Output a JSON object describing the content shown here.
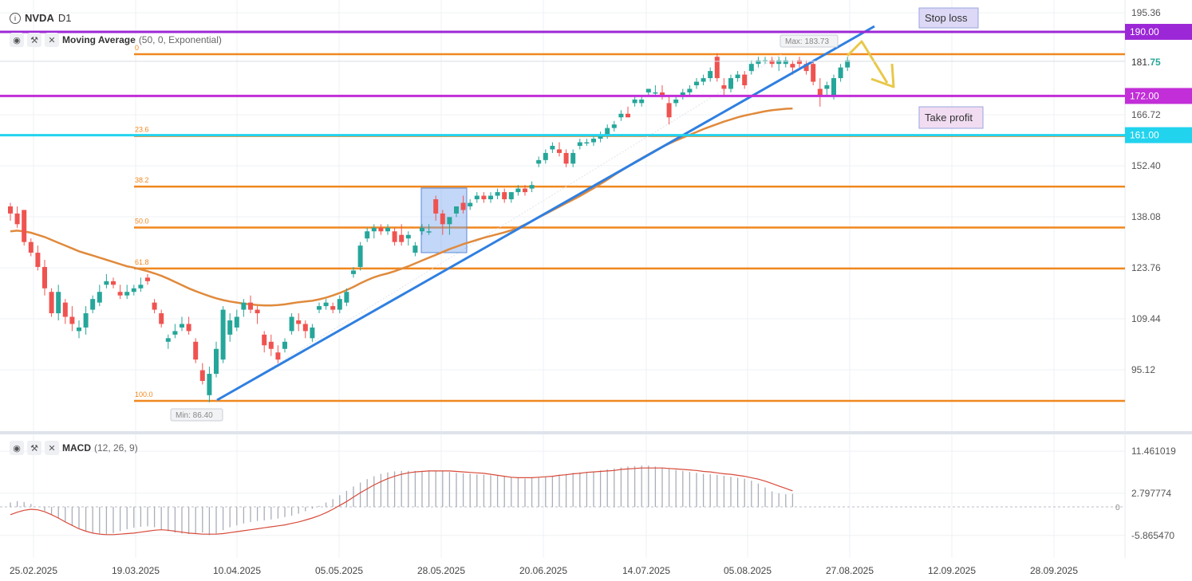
{
  "header": {
    "symbol": "NVDA",
    "timeframe": "D1"
  },
  "indicator_main": {
    "name": "Moving Average",
    "params": "(50, 0, Exponential)"
  },
  "indicator_sub": {
    "name": "MACD",
    "params": "(12, 26, 9)"
  },
  "icons": [
    "info-icon",
    "eye-icon",
    "wrench-icon",
    "close-icon"
  ],
  "annotations": {
    "stop_loss_label": "Stop loss",
    "take_profit_label": "Take profit",
    "max_label": "Max: 183.73",
    "min_label": "Min: 86.40"
  },
  "colors": {
    "up": "#26a69a",
    "down": "#ef5350",
    "fib": "#f0871e",
    "ema": "#e08a3c",
    "trend": "#2f7fe0",
    "level_stop": "#9c27d6",
    "level_take": "#c22ed8",
    "level_cyan": "#22d3ee",
    "arrow": "#e8c84a",
    "box": "#7aa7f0"
  },
  "chart_data": {
    "type": "candlestick",
    "price_axis_labels": [
      "195.36",
      "181.75",
      "166.72",
      "152.40",
      "138.08",
      "123.76",
      "109.44",
      "95.12"
    ],
    "date_labels": [
      "25.02.2025",
      "19.03.2025",
      "10.04.2025",
      "05.05.2025",
      "28.05.2025",
      "20.06.2025",
      "14.07.2025",
      "05.08.2025",
      "27.08.2025",
      "12.09.2025",
      "28.09.2025"
    ],
    "current_price": {
      "whole": "181.",
      "decimals": "75"
    },
    "horizontal_levels": [
      {
        "price": 190.0,
        "label": "190.00",
        "color": "#9c27d6"
      },
      {
        "price": 172.0,
        "label": "172.00",
        "color": "#c22ed8"
      },
      {
        "price": 161.0,
        "label": "161.00",
        "color": "#22d3ee"
      }
    ],
    "fibonacci": {
      "levels": [
        {
          "ratio": "0",
          "price": 183.73
        },
        {
          "ratio": "23.6",
          "price": 160.76
        },
        {
          "ratio": "38.2",
          "price": 146.55
        },
        {
          "ratio": "50.0",
          "price": 135.07
        },
        {
          "ratio": "61.8",
          "price": 123.58
        },
        {
          "ratio": "100.0",
          "price": 86.4
        }
      ]
    },
    "candles": [
      {
        "o": 141,
        "h": 142,
        "l": 137,
        "c": 139
      },
      {
        "o": 139,
        "h": 141,
        "l": 135,
        "c": 136
      },
      {
        "o": 140,
        "h": 140,
        "l": 130,
        "c": 131
      },
      {
        "o": 131,
        "h": 132,
        "l": 127,
        "c": 128
      },
      {
        "o": 128,
        "h": 130,
        "l": 123,
        "c": 124
      },
      {
        "o": 124,
        "h": 126,
        "l": 116,
        "c": 118
      },
      {
        "o": 117,
        "h": 118,
        "l": 110,
        "c": 111
      },
      {
        "o": 111,
        "h": 119,
        "l": 109,
        "c": 117
      },
      {
        "o": 114,
        "h": 115,
        "l": 108,
        "c": 110
      },
      {
        "o": 110,
        "h": 113,
        "l": 106,
        "c": 108
      },
      {
        "o": 106,
        "h": 109,
        "l": 104,
        "c": 107
      },
      {
        "o": 107,
        "h": 113,
        "l": 105,
        "c": 111
      },
      {
        "o": 112,
        "h": 116,
        "l": 111,
        "c": 115
      },
      {
        "o": 114,
        "h": 119,
        "l": 113,
        "c": 117
      },
      {
        "o": 119,
        "h": 122,
        "l": 118,
        "c": 120
      },
      {
        "o": 120,
        "h": 121,
        "l": 118,
        "c": 119
      },
      {
        "o": 117,
        "h": 119,
        "l": 115,
        "c": 116
      },
      {
        "o": 116,
        "h": 119,
        "l": 115,
        "c": 117
      },
      {
        "o": 117,
        "h": 119,
        "l": 116,
        "c": 118
      },
      {
        "o": 118,
        "h": 121,
        "l": 117,
        "c": 119
      },
      {
        "o": 121,
        "h": 122,
        "l": 119,
        "c": 120
      },
      {
        "o": 114,
        "h": 115,
        "l": 111,
        "c": 112
      },
      {
        "o": 111,
        "h": 112,
        "l": 107,
        "c": 108
      },
      {
        "o": 103,
        "h": 105,
        "l": 101,
        "c": 104
      },
      {
        "o": 105,
        "h": 108,
        "l": 104,
        "c": 106
      },
      {
        "o": 107,
        "h": 110,
        "l": 106,
        "c": 108
      },
      {
        "o": 108,
        "h": 110,
        "l": 105,
        "c": 106
      },
      {
        "o": 103,
        "h": 104,
        "l": 97,
        "c": 98
      },
      {
        "o": 95,
        "h": 97,
        "l": 91,
        "c": 92
      },
      {
        "o": 88,
        "h": 96,
        "l": 86,
        "c": 94
      },
      {
        "o": 94,
        "h": 103,
        "l": 93,
        "c": 101
      },
      {
        "o": 98,
        "h": 113,
        "l": 97,
        "c": 112
      },
      {
        "o": 105,
        "h": 111,
        "l": 103,
        "c": 109
      },
      {
        "o": 107,
        "h": 112,
        "l": 106,
        "c": 110
      },
      {
        "o": 112,
        "h": 115,
        "l": 110,
        "c": 114
      },
      {
        "o": 114,
        "h": 116,
        "l": 111,
        "c": 112
      },
      {
        "o": 112,
        "h": 113,
        "l": 108,
        "c": 111
      },
      {
        "o": 105,
        "h": 106,
        "l": 100,
        "c": 102
      },
      {
        "o": 103,
        "h": 105,
        "l": 99,
        "c": 101
      },
      {
        "o": 100,
        "h": 102,
        "l": 97,
        "c": 98
      },
      {
        "o": 101,
        "h": 104,
        "l": 100,
        "c": 103
      },
      {
        "o": 106,
        "h": 111,
        "l": 105,
        "c": 110
      },
      {
        "o": 109,
        "h": 111,
        "l": 106,
        "c": 108
      },
      {
        "o": 108,
        "h": 109,
        "l": 104,
        "c": 106
      },
      {
        "o": 104,
        "h": 108,
        "l": 103,
        "c": 107
      },
      {
        "o": 112,
        "h": 114,
        "l": 111,
        "c": 113
      },
      {
        "o": 113,
        "h": 115,
        "l": 112,
        "c": 114
      },
      {
        "o": 113,
        "h": 114,
        "l": 111,
        "c": 112
      },
      {
        "o": 112,
        "h": 116,
        "l": 111,
        "c": 115
      },
      {
        "o": 114,
        "h": 118,
        "l": 113,
        "c": 117
      },
      {
        "o": 122,
        "h": 124,
        "l": 121,
        "c": 123
      },
      {
        "o": 124,
        "h": 131,
        "l": 123,
        "c": 130
      },
      {
        "o": 132,
        "h": 135,
        "l": 131,
        "c": 134
      },
      {
        "o": 134,
        "h": 136,
        "l": 132,
        "c": 135
      },
      {
        "o": 135,
        "h": 136,
        "l": 133,
        "c": 134
      },
      {
        "o": 134,
        "h": 136,
        "l": 133,
        "c": 135
      },
      {
        "o": 134,
        "h": 135,
        "l": 130,
        "c": 131
      },
      {
        "o": 133,
        "h": 136,
        "l": 130,
        "c": 131
      },
      {
        "o": 132,
        "h": 134,
        "l": 130,
        "c": 133
      },
      {
        "o": 128,
        "h": 131,
        "l": 127,
        "c": 130
      },
      {
        "o": 134,
        "h": 136,
        "l": 133,
        "c": 135
      },
      {
        "o": 134,
        "h": 136,
        "l": 133,
        "c": 134
      },
      {
        "o": 143,
        "h": 144,
        "l": 137,
        "c": 139
      },
      {
        "o": 139,
        "h": 140,
        "l": 133,
        "c": 136
      },
      {
        "o": 136,
        "h": 138,
        "l": 133,
        "c": 138
      },
      {
        "o": 139,
        "h": 141,
        "l": 138,
        "c": 141
      },
      {
        "o": 142,
        "h": 144,
        "l": 139,
        "c": 140
      },
      {
        "o": 141,
        "h": 143,
        "l": 140,
        "c": 142
      },
      {
        "o": 143,
        "h": 145,
        "l": 142,
        "c": 144
      },
      {
        "o": 144,
        "h": 145,
        "l": 142,
        "c": 143
      },
      {
        "o": 143,
        "h": 145,
        "l": 142,
        "c": 144
      },
      {
        "o": 144,
        "h": 146,
        "l": 143,
        "c": 145
      },
      {
        "o": 145,
        "h": 146,
        "l": 142,
        "c": 143
      },
      {
        "o": 143,
        "h": 145,
        "l": 142,
        "c": 145
      },
      {
        "o": 145,
        "h": 147,
        "l": 144,
        "c": 146
      },
      {
        "o": 146,
        "h": 147,
        "l": 144,
        "c": 145
      },
      {
        "o": 146,
        "h": 148,
        "l": 145,
        "c": 147
      },
      {
        "o": 153,
        "h": 155,
        "l": 152,
        "c": 154
      },
      {
        "o": 154,
        "h": 157,
        "l": 153,
        "c": 156
      },
      {
        "o": 157,
        "h": 159,
        "l": 156,
        "c": 158
      },
      {
        "o": 157,
        "h": 159,
        "l": 155,
        "c": 156
      },
      {
        "o": 156,
        "h": 157,
        "l": 152,
        "c": 153
      },
      {
        "o": 153,
        "h": 157,
        "l": 152,
        "c": 156
      },
      {
        "o": 158,
        "h": 160,
        "l": 157,
        "c": 159
      },
      {
        "o": 159,
        "h": 160,
        "l": 158,
        "c": 159
      },
      {
        "o": 159,
        "h": 161,
        "l": 158,
        "c": 160
      },
      {
        "o": 160,
        "h": 162,
        "l": 159,
        "c": 161
      },
      {
        "o": 161,
        "h": 164,
        "l": 160,
        "c": 163
      },
      {
        "o": 163,
        "h": 165,
        "l": 162,
        "c": 164
      },
      {
        "o": 166,
        "h": 168,
        "l": 165,
        "c": 167
      },
      {
        "o": 167,
        "h": 169,
        "l": 166,
        "c": 166
      },
      {
        "o": 170,
        "h": 172,
        "l": 169,
        "c": 171
      },
      {
        "o": 170,
        "h": 172,
        "l": 169,
        "c": 171
      },
      {
        "o": 173,
        "h": 174,
        "l": 172,
        "c": 174
      },
      {
        "o": 173,
        "h": 175,
        "l": 172,
        "c": 173
      },
      {
        "o": 173,
        "h": 175,
        "l": 171,
        "c": 172
      },
      {
        "o": 170,
        "h": 172,
        "l": 164,
        "c": 166
      },
      {
        "o": 170,
        "h": 172,
        "l": 169,
        "c": 171
      },
      {
        "o": 172,
        "h": 174,
        "l": 171,
        "c": 173
      },
      {
        "o": 173,
        "h": 175,
        "l": 172,
        "c": 174
      },
      {
        "o": 175,
        "h": 177,
        "l": 174,
        "c": 176
      },
      {
        "o": 176,
        "h": 178,
        "l": 175,
        "c": 177
      },
      {
        "o": 177,
        "h": 180,
        "l": 176,
        "c": 179
      },
      {
        "o": 183,
        "h": 184,
        "l": 176,
        "c": 177
      },
      {
        "o": 175,
        "h": 177,
        "l": 172,
        "c": 174
      },
      {
        "o": 174,
        "h": 178,
        "l": 173,
        "c": 177
      },
      {
        "o": 177,
        "h": 179,
        "l": 176,
        "c": 178
      },
      {
        "o": 178,
        "h": 179,
        "l": 174,
        "c": 175
      },
      {
        "o": 179,
        "h": 182,
        "l": 178,
        "c": 181
      },
      {
        "o": 181,
        "h": 183,
        "l": 180,
        "c": 182
      },
      {
        "o": 182,
        "h": 183,
        "l": 181,
        "c": 182
      },
      {
        "o": 182,
        "h": 183,
        "l": 180,
        "c": 181
      },
      {
        "o": 181,
        "h": 183,
        "l": 179,
        "c": 182
      },
      {
        "o": 181,
        "h": 183,
        "l": 180,
        "c": 182
      },
      {
        "o": 181,
        "h": 182,
        "l": 178,
        "c": 180
      },
      {
        "o": 182,
        "h": 183,
        "l": 180,
        "c": 181
      },
      {
        "o": 181,
        "h": 182,
        "l": 178,
        "c": 179
      },
      {
        "o": 181,
        "h": 182,
        "l": 175,
        "c": 176
      },
      {
        "o": 174,
        "h": 177,
        "l": 169,
        "c": 172
      },
      {
        "o": 174,
        "h": 176,
        "l": 172,
        "c": 175
      },
      {
        "o": 172,
        "h": 178,
        "l": 171,
        "c": 177
      },
      {
        "o": 177,
        "h": 181,
        "l": 176,
        "c": 180
      },
      {
        "o": 180,
        "h": 183,
        "l": 179,
        "c": 182
      }
    ],
    "ema50": [
      134,
      134.2,
      134,
      133.6,
      133,
      132.4,
      131.6,
      130.8,
      130,
      129.2,
      128.4,
      127.8,
      127.2,
      126.6,
      126,
      125.4,
      124.8,
      124.2,
      123.8,
      123.3,
      122.8,
      122.2,
      121.5,
      120.7,
      119.8,
      118.9,
      118,
      117.2,
      116.5,
      115.8,
      115.2,
      114.7,
      114.3,
      114,
      113.7,
      113.5,
      113.3,
      113.2,
      113.2,
      113.3,
      113.5,
      113.8,
      114.1,
      114.3,
      114.5,
      114.9,
      115.4,
      116,
      116.7,
      117.5,
      118.4,
      119.4,
      120.3,
      121.1,
      121.7,
      122.2,
      122.8,
      123.5,
      124.2,
      125,
      125.8,
      126.6,
      127.4,
      128.2,
      129,
      129.7,
      130.4,
      131,
      131.6,
      132.2,
      132.7,
      133.2,
      133.7,
      134.3,
      135,
      135.9,
      136.9,
      137.9,
      138.9,
      139.9,
      140.9,
      141.9,
      142.9,
      143.9,
      145,
      146.1,
      147.3,
      148.5,
      149.8,
      151,
      152.2,
      153.4,
      154.5,
      155.6,
      156.7,
      157.7,
      158.6,
      159.5,
      160.3,
      161.1,
      161.9,
      162.7,
      163.4,
      164.1,
      164.8,
      165.4,
      166,
      166.5,
      166.9,
      167.3,
      167.7,
      168,
      168.2,
      168.4,
      168.5
    ],
    "macd_histogram": [
      0.9,
      1.2,
      1.0,
      0.6,
      0.0,
      -0.8,
      -1.6,
      -2.4,
      -3.2,
      -3.8,
      -4.4,
      -4.9,
      -5.3,
      -5.6,
      -5.6,
      -5.4,
      -5.0,
      -4.6,
      -4.3,
      -4.1,
      -4.0,
      -4.2,
      -4.6,
      -5.0,
      -5.3,
      -5.5,
      -5.6,
      -5.5,
      -5.3,
      -5.8,
      -5.5,
      -4.8,
      -4.2,
      -3.8,
      -3.4,
      -3.1,
      -2.9,
      -2.8,
      -2.6,
      -2.4,
      -2.1,
      -1.8,
      -1.4,
      -0.9,
      -0.4,
      0.2,
      0.9,
      1.6,
      2.4,
      3.3,
      4.2,
      5.0,
      5.7,
      6.3,
      6.8,
      7.1,
      7.3,
      7.4,
      7.4,
      7.4,
      7.4,
      7.5,
      7.4,
      7.3,
      7.2,
      7.0,
      6.9,
      6.8,
      6.7,
      6.6,
      6.5,
      6.4,
      6.3,
      6.1,
      5.9,
      5.8,
      5.9,
      6.0,
      6.2,
      6.4,
      6.6,
      6.8,
      7.0,
      7.1,
      7.2,
      7.3,
      7.5,
      7.7,
      7.9,
      8.1,
      8.3,
      8.4,
      8.5,
      8.5,
      8.3,
      8.1,
      7.8,
      7.6,
      7.4,
      7.2,
      7.0,
      6.8,
      6.7,
      6.6,
      6.4,
      6.2,
      6.0,
      5.8,
      5.4,
      4.8,
      4.0,
      3.2,
      2.8,
      2.6,
      2.7
    ],
    "macd_signal": [
      -1.6,
      -1.1,
      -0.7,
      -0.5,
      -0.6,
      -1.0,
      -1.6,
      -2.3,
      -3.1,
      -3.8,
      -4.5,
      -5.0,
      -5.4,
      -5.6,
      -5.7,
      -5.7,
      -5.6,
      -5.5,
      -5.4,
      -5.2,
      -5.0,
      -4.8,
      -4.7,
      -4.8,
      -5.0,
      -5.2,
      -5.4,
      -5.5,
      -5.6,
      -5.6,
      -5.6,
      -5.5,
      -5.3,
      -5.1,
      -4.9,
      -4.7,
      -4.5,
      -4.3,
      -4.1,
      -3.9,
      -3.7,
      -3.4,
      -3.1,
      -2.7,
      -2.3,
      -1.8,
      -1.2,
      -0.5,
      0.3,
      1.1,
      2.0,
      2.9,
      3.7,
      4.5,
      5.2,
      5.8,
      6.3,
      6.7,
      7.0,
      7.2,
      7.3,
      7.4,
      7.4,
      7.4,
      7.4,
      7.3,
      7.2,
      7.1,
      7.0,
      6.9,
      6.7,
      6.5,
      6.3,
      6.1,
      6.0,
      6.0,
      6.0,
      6.1,
      6.2,
      6.3,
      6.5,
      6.6,
      6.8,
      6.9,
      7.1,
      7.2,
      7.3,
      7.4,
      7.5,
      7.7,
      7.8,
      7.9,
      8.0,
      8.0,
      8.0,
      8.0,
      7.9,
      7.8,
      7.7,
      7.6,
      7.5,
      7.3,
      7.2,
      7.0,
      6.8,
      6.7,
      6.5,
      6.3,
      6.0,
      5.7,
      5.3,
      4.8,
      4.3,
      3.8,
      3.3
    ],
    "macd_axis_labels": [
      "11.461019",
      "2.797774",
      "0",
      "-5.865470"
    ]
  }
}
